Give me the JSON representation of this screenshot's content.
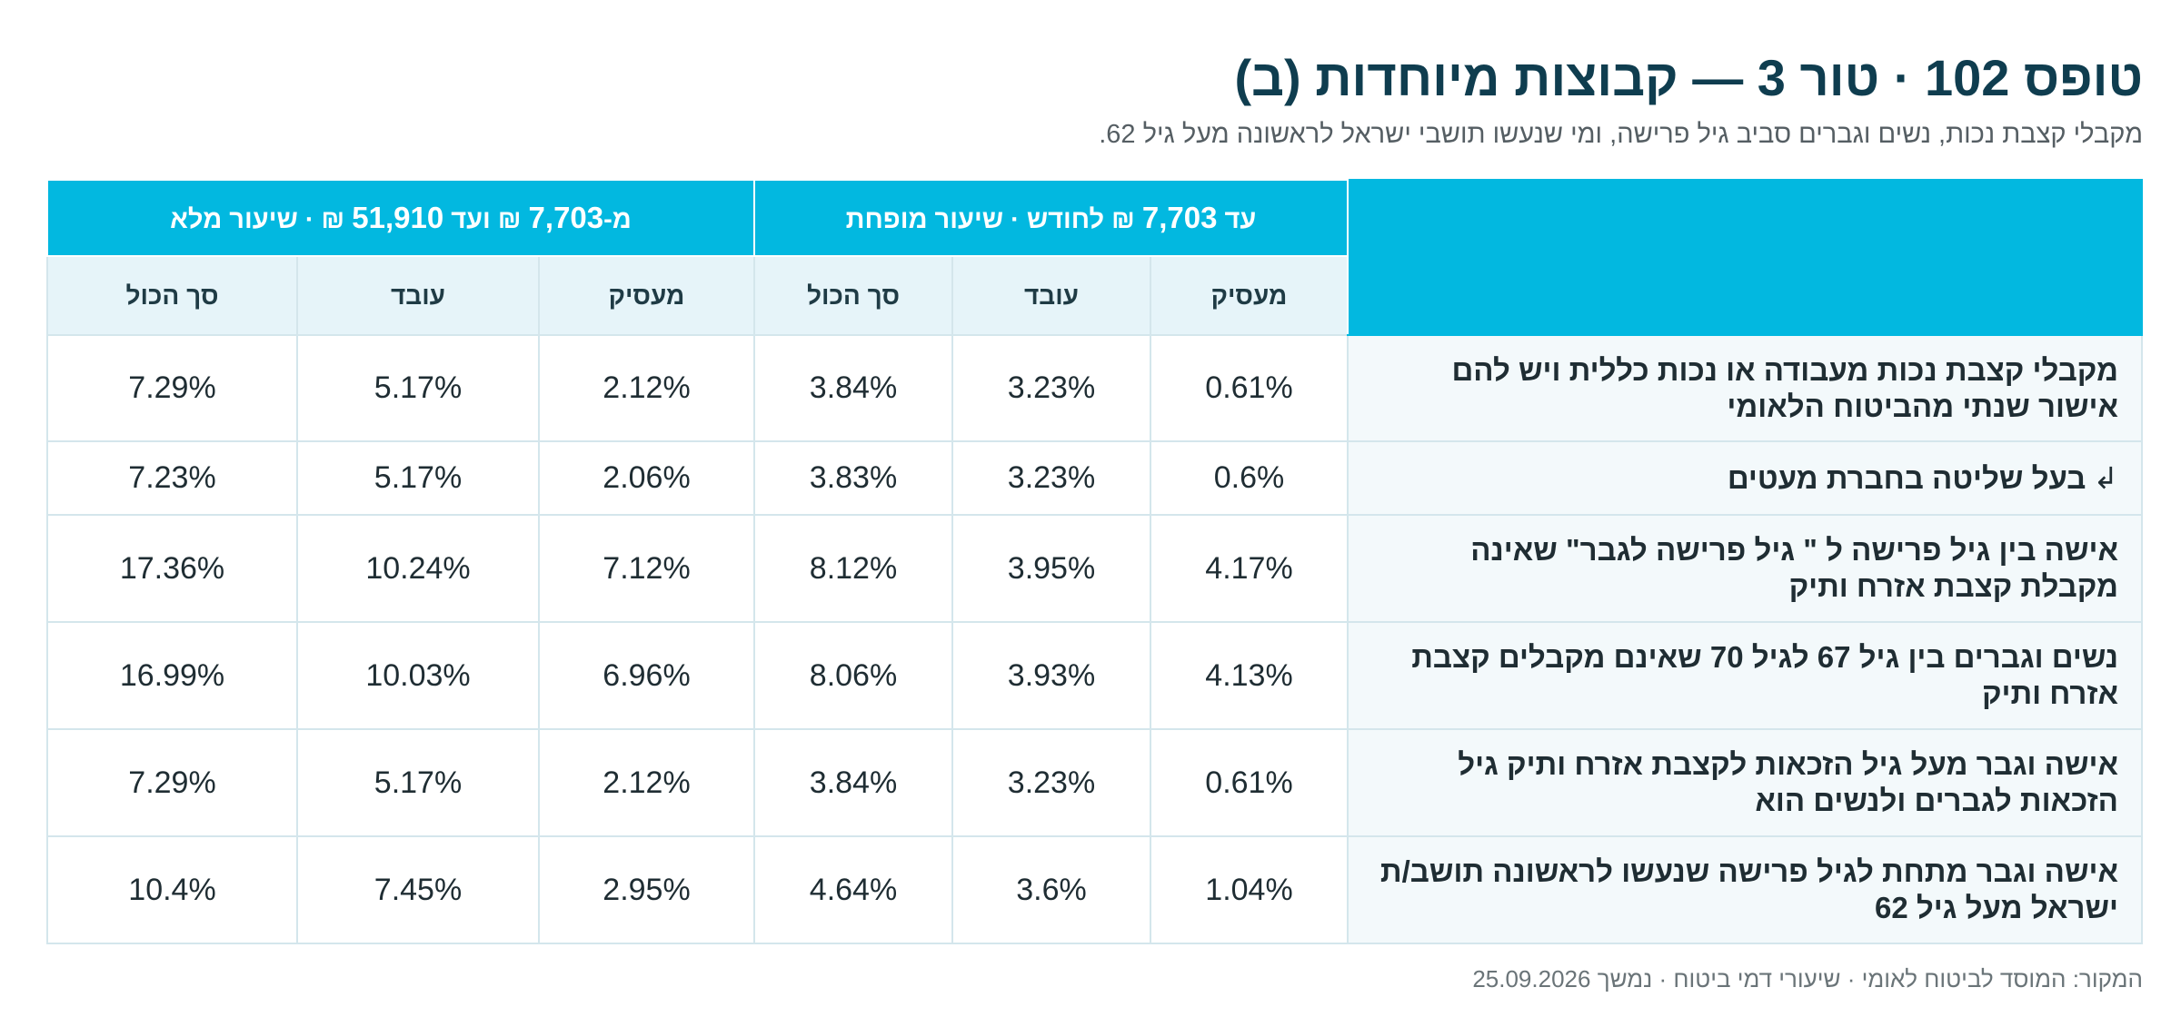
{
  "title": "טופס 102 · טור 3 — קבוצות מיוחדות (ב)",
  "subtitle": "מקבלי קצבת נכות, נשים וגברים סביב גיל פרישה, ומי שנעשו תושבי ישראל לראשונה מעל גיל 62.",
  "table": {
    "group_reduced": {
      "prefix": "עד ",
      "amount": "7,703",
      "suffix": " ₪ לחודש · שיעור מופחת"
    },
    "group_full": {
      "prefix": "מ-",
      "amount_from": "7,703",
      "middle": " ₪ ועד ",
      "amount_to": "51,910",
      "suffix": " ₪ · שיעור מלא"
    },
    "columns": [
      "מעסיק",
      "עובד",
      "סך הכול",
      "מעסיק",
      "עובד",
      "סך הכול"
    ],
    "rows": [
      {
        "label": "מקבלי קצבת נכות מעבודה או נכות כללית ויש להם אישור שנתי מהביטוח הלאומי",
        "values": [
          "0.61%",
          "3.23%",
          "3.84%",
          "2.12%",
          "5.17%",
          "7.29%"
        ]
      },
      {
        "arrow": "↲",
        "label": "בעל שליטה בחברת מעטים",
        "values": [
          "0.6%",
          "3.23%",
          "3.83%",
          "2.06%",
          "5.17%",
          "7.23%"
        ]
      },
      {
        "label": "אישה בין גיל פרישה ל \" גיל פרישה לגבר\" שאינה מקבלת קצבת אזרח ותיק",
        "values": [
          "4.17%",
          "3.95%",
          "8.12%",
          "7.12%",
          "10.24%",
          "17.36%"
        ]
      },
      {
        "label": "נשים וגברים בין גיל 67 לגיל 70 שאינם מקבלים קצבת אזרח ותיק",
        "values": [
          "4.13%",
          "3.93%",
          "8.06%",
          "6.96%",
          "10.03%",
          "16.99%"
        ]
      },
      {
        "label": "אישה וגבר מעל גיל הזכאות לקצבת אזרח ותיק גיל הזכאות לגברים ולנשים הוא",
        "values": [
          "0.61%",
          "3.23%",
          "3.84%",
          "2.12%",
          "5.17%",
          "7.29%"
        ]
      },
      {
        "label": "אישה וגבר מתחת לגיל פרישה שנעשו לראשונה תושב/ת ישראל מעל גיל 62",
        "values": [
          "1.04%",
          "3.6%",
          "4.64%",
          "2.95%",
          "7.45%",
          "10.4%"
        ]
      }
    ]
  },
  "source": "המקור: המוסד לביטוח לאומי · שיעורי דמי ביטוח · נמשך 25.09.2026",
  "colors": {
    "header_bg": "#02b8e0",
    "subheader_bg": "#e6f4f9",
    "label_bg": "#f3f9fb",
    "title": "#0f3d4f",
    "border": "#d4e6ec"
  }
}
